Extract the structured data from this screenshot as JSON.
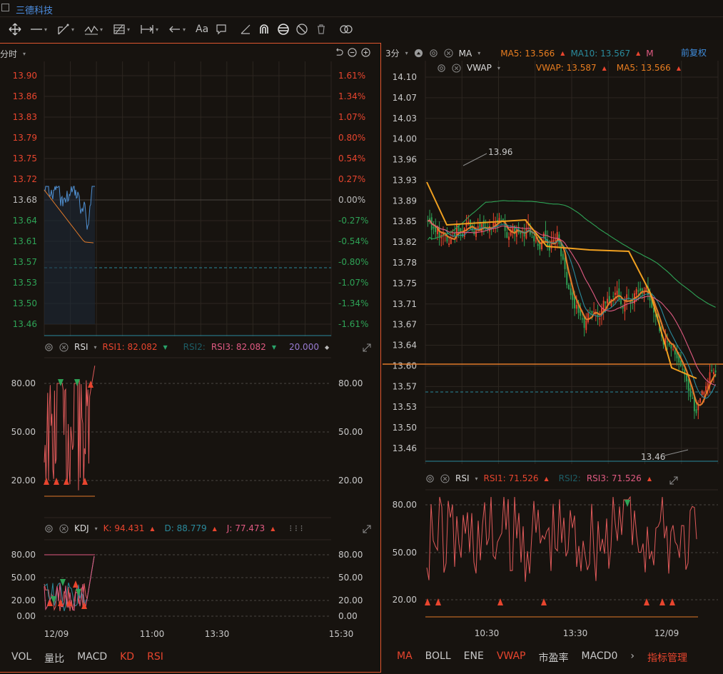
{
  "app": {
    "title": "三德科技"
  },
  "colors": {
    "up": "#e8452e",
    "down": "#2ea356",
    "accent": "#e0562e",
    "grid": "#2c2620"
  },
  "left": {
    "period_label": "分时",
    "price_ticks": [
      "13.90",
      "13.86",
      "13.83",
      "13.79",
      "13.75",
      "13.72",
      "13.68",
      "13.64",
      "13.61",
      "13.57",
      "13.53",
      "13.50",
      "13.46"
    ],
    "pct_ticks": [
      "1.61%",
      "1.34%",
      "1.07%",
      "0.80%",
      "0.54%",
      "0.27%",
      "0.00%",
      "-0.27%",
      "-0.54%",
      "-0.80%",
      "-1.07%",
      "-1.34%",
      "-1.61%"
    ],
    "rsi": {
      "name": "RSI",
      "rsi1_label": "RSI1: 82.082",
      "rsi2_label": "RSI2:",
      "rsi3_label": "RSI3: 82.082",
      "level_label": "20.000",
      "ticks": [
        "80.00",
        "50.00",
        "20.00"
      ]
    },
    "kdj": {
      "name": "KDJ",
      "k_label": "K: 94.431",
      "d_label": "D: 88.779",
      "j_label": "J: 77.473",
      "ticks": [
        "80.00",
        "50.00",
        "20.00",
        "0.00"
      ]
    },
    "time_ticks": [
      "12/09",
      "11:00",
      "13:30",
      "15:30"
    ],
    "tabs": [
      "VOL",
      "量比",
      "MACD",
      "KD",
      "RSI"
    ]
  },
  "right": {
    "period_label": "3分",
    "ma": {
      "name": "MA",
      "ma5_label": "MA5: 13.566",
      "ma10_label": "MA10: 13.567",
      "more": "M"
    },
    "adjust_label": "前复权",
    "vwap": {
      "name": "VWAP",
      "vwap_label": "VWAP: 13.587",
      "ma5_label": "MA5: 13.566"
    },
    "price_ticks": [
      "14.10",
      "14.07",
      "14.03",
      "14.00",
      "13.96",
      "13.93",
      "13.89",
      "13.85",
      "13.82",
      "13.78",
      "13.75",
      "13.71",
      "13.67",
      "13.64",
      "13.60",
      "13.57",
      "13.53",
      "13.50",
      "13.46"
    ],
    "high_label": "13.96",
    "low_label": "13.46",
    "rsi": {
      "name": "RSI",
      "rsi1_label": "RSI1: 71.526",
      "rsi2_label": "RSI2:",
      "rsi3_label": "RSI3: 71.526",
      "ticks": [
        "80.00",
        "50.00",
        "20.00"
      ]
    },
    "time_ticks": [
      "10:30",
      "13:30",
      "12/09"
    ],
    "tabs": [
      "MA",
      "BOLL",
      "ENE",
      "VWAP",
      "市盈率",
      "MACD0"
    ],
    "more_arrow": "›",
    "manage_label": "指标管理"
  }
}
